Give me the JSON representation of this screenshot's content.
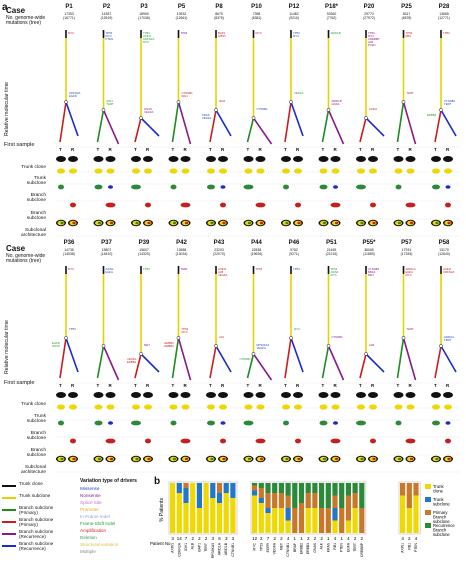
{
  "panel_a_label": "a",
  "panel_b_label": "b",
  "header": {
    "case": "Case",
    "mutations": "No. genome-wide\nmutations (tree)",
    "yaxis": "Relative molecular time",
    "first_sample": "First sample"
  },
  "rows_labels": {
    "trunk_clone": "Trunk clone",
    "trunk_subclone": "Trunk\nsubclone",
    "branch_subclone": "Branch\nsubclone",
    "branch_subclone2": "Branch\nsubclone",
    "subclonal_arch": "Subclonal\narchitecture",
    "T": "T",
    "R": "R"
  },
  "top_cases": [
    {
      "id": "P1",
      "mut": "17353\n(16771)",
      "genes": [
        "MYC",
        "CDKN2A\nEGFR"
      ],
      "trunk": "#f0d800"
    },
    {
      "id": "P2",
      "mut": "14387\n(13919)",
      "genes": [
        "TP53\nMYC\nPTEN",
        "IDH1\nTERT"
      ],
      "trunk": "#f0d800"
    },
    {
      "id": "P3",
      "mut": "18960\n(17036)",
      "genes": [
        "TP53\nAXIN1\nCDKN2A\nMYC",
        "GNAS\nVEGFA"
      ],
      "trunk": "#f0d800"
    },
    {
      "id": "P5",
      "mut": "13932\n(12661)",
      "genes": [
        "TP53",
        "CTNNB1\nIDH1"
      ],
      "trunk": "#f0d800"
    },
    {
      "id": "P8",
      "mut": "8675\n(8375)",
      "genes": [
        "BAP1\nILBST",
        "IDH1",
        "KRAS\nVEGFA"
      ],
      "trunk": "#f0d800"
    },
    {
      "id": "P10",
      "mut": "7398\n(6381)",
      "genes": [
        "MYC",
        "CTNNB1"
      ],
      "trunk": "#f0d800"
    },
    {
      "id": "P12",
      "mut": "11482\n(9210)",
      "genes": [
        "TP53\nMYC",
        "VEGFA"
      ],
      "trunk": "#f0d800"
    },
    {
      "id": "P18*",
      "mut": "93360\n(7762)",
      "genes": [
        "ARID1B",
        "ARID1B\nGNAS"
      ],
      "trunk": "#f0d800"
    },
    {
      "id": "P20",
      "mut": "29773\n(27972)",
      "genes": [
        "TP53\nMYC\nCREBBP\nALB\nPTEN",
        "AXIN1"
      ],
      "trunk": "#f0d800"
    },
    {
      "id": "P25",
      "mut": "8317\n(6578)",
      "genes": [
        "TP53\nRB1",
        "TERT"
      ],
      "trunk": "#f0d800"
    },
    {
      "id": "P28",
      "mut": "13665\n(12771)",
      "genes": [
        "TP53",
        "CTNNB1\nTERT",
        "ERBB2"
      ],
      "trunk": "#f0d800"
    }
  ],
  "bottom_cases": [
    {
      "id": "P36",
      "mut": "14735\n(14538)",
      "genes": [
        "MYC",
        "TP53",
        "EGFR\nGNAS"
      ],
      "trunk": "#f0d800"
    },
    {
      "id": "P37",
      "mut": "15807\n(14810)",
      "genes": [
        "AXIN1\nEGFA"
      ],
      "trunk": "#f0d800"
    },
    {
      "id": "P39",
      "mut": "15607\n(14320)",
      "genes": [
        "TP53",
        "MET",
        "VEGFA\nERBB2"
      ],
      "trunk": "#f0d800"
    },
    {
      "id": "P42",
      "mut": "13588\n(13034)",
      "genes": [
        "TERT",
        "TP53\nMYC",
        "ERBB2\nERBB3"
      ],
      "trunk": "#f0d800"
    },
    {
      "id": "P43",
      "mut": "23203\n(22070)",
      "genes": [
        "AXIN1\nALB\nVEGFA",
        "ALK"
      ],
      "trunk": "#f0d800"
    },
    {
      "id": "P44",
      "mut": "22838\n(19626)",
      "genes": [
        "TP53",
        "RPS6KA3\nVEGFA",
        "CTNNB1"
      ],
      "trunk": "#f0d800"
    },
    {
      "id": "P46",
      "mut": "9762\n(9271)",
      "genes": [
        "TP53",
        "MYC"
      ],
      "trunk": "#f0d800"
    },
    {
      "id": "P51",
      "mut": "21469\n(21215)",
      "genes": [
        "TP53\nAXIN1\nMYC",
        "CTNNB1"
      ],
      "trunk": "#f0d800"
    },
    {
      "id": "P55*",
      "mut": "36065\n(11889)",
      "genes": [
        "CTNNB1\nBRAF\nMET",
        "ALB"
      ],
      "trunk": "#f0d800"
    },
    {
      "id": "P57",
      "mut": "17931\n(17283)",
      "genes": [
        "ARID1A\nEGFA\nMYC",
        "TERT"
      ],
      "trunk": "#f0d800"
    },
    {
      "id": "P58",
      "mut": "13170\n(12640)",
      "genes": [
        "AXIN1\nCDKN2A",
        "ARID1A\nTERT"
      ],
      "trunk": "#f0d800"
    }
  ],
  "legend_lines": [
    {
      "label": "Trunk clone",
      "color": "#111111"
    },
    {
      "label": "Trunk subclone",
      "color": "#e6d200"
    },
    {
      "label": "Branch subclone\n(Primary)",
      "color": "#1e8c1e"
    },
    {
      "label": "Branch subclone\n(Primary)",
      "color": "#c81e1e"
    },
    {
      "label": "Branch subclone\n(Recurrence)",
      "color": "#8a1a8a"
    },
    {
      "label": "Branch subclone\n(Recurrence)",
      "color": "#1a2bd0"
    }
  ],
  "legend_variation": {
    "title": "Variation type of drivers",
    "items": [
      {
        "label": "Missense",
        "color": "#1f49c8"
      },
      {
        "label": "Nonsense",
        "color": "#8b1a8b"
      },
      {
        "label": "Splice Site",
        "color": "#c86ec8"
      },
      {
        "label": "Promoter",
        "color": "#f0a020"
      },
      {
        "label": "In-Frame Indel",
        "color": "#9b9bdd"
      },
      {
        "label": "Frame-Shift Indel",
        "color": "#20a030"
      },
      {
        "label": "Amplification",
        "color": "#d01a1a"
      },
      {
        "label": "Deletion",
        "color": "#30a060"
      },
      {
        "label": "Structural variation",
        "color": "#e0c040"
      },
      {
        "label": "Multiple",
        "color": "#888888"
      }
    ]
  },
  "panel_b": {
    "ylabel": "% Patients",
    "xlabel_prefix": "Patient No.",
    "legend": [
      {
        "label": "Trunk\nclone",
        "color": "#f0d800"
      },
      {
        "label": "Trunk\nsubclone",
        "color": "#1f78c8"
      },
      {
        "label": "Primary\nBranch\nsubclone",
        "color": "#c87828"
      },
      {
        "label": "Recurrence\nBranch\nsubclone",
        "color": "#2a8a3a"
      }
    ]
  },
  "chart_data": {
    "type": "bar",
    "stacked": true,
    "ylabel": "% Patients",
    "ylim": [
      0,
      100
    ],
    "groups": [
      {
        "categories": [
          "AXIN1",
          "CDKN2A",
          "IDH1",
          "ALB",
          "BAP1",
          "TERT",
          "RPS6KA3",
          "ARID1A",
          "ARID1B",
          "CTNNB1"
        ],
        "patients": [
          3,
          14,
          7,
          2,
          2,
          2,
          3,
          6,
          3,
          3
        ],
        "series": [
          {
            "name": "Trunk clone",
            "values": [
              100,
              80,
              60,
              100,
              50,
              100,
              70,
              60,
              80,
              70
            ]
          },
          {
            "name": "Trunk subclone",
            "values": [
              0,
              20,
              30,
              0,
              50,
              0,
              30,
              20,
              20,
              30
            ]
          },
          {
            "name": "Primary Branch subclone",
            "values": [
              0,
              0,
              10,
              0,
              0,
              0,
              0,
              20,
              0,
              0
            ]
          },
          {
            "name": "Recurrence Branch subclone",
            "values": [
              0,
              0,
              0,
              0,
              0,
              0,
              0,
              0,
              0,
              0
            ]
          }
        ]
      },
      {
        "categories": [
          "MYC",
          "TP53",
          "EGFR",
          "VEGFA",
          "MET",
          "CTNNB1",
          "BRAF",
          "ERBB2",
          "ERBB3",
          "GNAS",
          "ALK",
          "KRAS",
          "RB1",
          "PTEN",
          "EGFA",
          "TERT",
          "CREBBP"
        ],
        "patients": [
          12,
          2,
          7,
          2,
          2,
          4,
          1,
          1,
          2,
          2,
          2,
          1,
          4,
          1,
          4,
          2,
          2
        ],
        "series": [
          {
            "name": "Trunk clone",
            "values": [
              75,
              60,
              40,
              50,
              50,
              25,
              0,
              0,
              50,
              50,
              0,
              0,
              25,
              0,
              25,
              50,
              0
            ]
          },
          {
            "name": "Trunk subclone",
            "values": [
              10,
              10,
              10,
              0,
              0,
              25,
              0,
              0,
              0,
              0,
              0,
              0,
              25,
              0,
              0,
              0,
              0
            ]
          },
          {
            "name": "Primary Branch subclone",
            "values": [
              10,
              20,
              30,
              30,
              30,
              25,
              50,
              60,
              30,
              30,
              50,
              50,
              25,
              50,
              50,
              30,
              50
            ]
          },
          {
            "name": "Recurrence Branch subclone",
            "values": [
              5,
              10,
              20,
              20,
              20,
              25,
              50,
              40,
              20,
              20,
              50,
              50,
              25,
              50,
              25,
              20,
              50
            ]
          }
        ]
      },
      {
        "categories": [
          "AXIN1",
          "RB1",
          "PTEN"
        ],
        "patients": [
          4,
          2,
          4
        ],
        "series": [
          {
            "name": "Trunk clone",
            "values": [
              75,
              50,
              75
            ]
          },
          {
            "name": "Trunk subclone",
            "values": [
              0,
              0,
              0
            ]
          },
          {
            "name": "Primary Branch subclone",
            "values": [
              25,
              50,
              25
            ]
          },
          {
            "name": "Recurrence Branch subclone",
            "values": [
              0,
              0,
              0
            ]
          }
        ]
      }
    ]
  }
}
